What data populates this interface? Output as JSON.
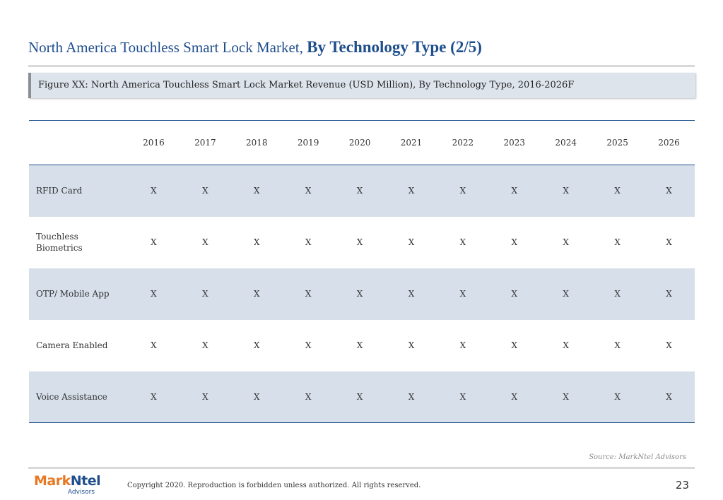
{
  "title": {
    "normal": "North America Touchless Smart Lock Market,",
    "bold": "By Technology Type (2/5)"
  },
  "figure_caption": "Figure XX: North America Touchless Smart Lock Market Revenue (USD Million), By Technology Type, 2016-2026F",
  "table": {
    "years": [
      "2016",
      "2017",
      "2018",
      "2019",
      "2020",
      "2021",
      "2022",
      "2023",
      "2024",
      "2025",
      "2026"
    ],
    "rows": [
      {
        "label_line1": "RFID Card",
        "label_line2": "",
        "values": [
          "X",
          "X",
          "X",
          "X",
          "X",
          "X",
          "X",
          "X",
          "X",
          "X",
          "X"
        ]
      },
      {
        "label_line1": "Touchless",
        "label_line2": "Biometrics",
        "values": [
          "X",
          "X",
          "X",
          "X",
          "X",
          "X",
          "X",
          "X",
          "X",
          "X",
          "X"
        ]
      },
      {
        "label_line1": "OTP/ Mobile App",
        "label_line2": "",
        "values": [
          "X",
          "X",
          "X",
          "X",
          "X",
          "X",
          "X",
          "X",
          "X",
          "X",
          "X"
        ]
      },
      {
        "label_line1": "Camera Enabled",
        "label_line2": "",
        "values": [
          "X",
          "X",
          "X",
          "X",
          "X",
          "X",
          "X",
          "X",
          "X",
          "X",
          "X"
        ]
      },
      {
        "label_line1": "Voice Assistance",
        "label_line2": "",
        "values": [
          "X",
          "X",
          "X",
          "X",
          "X",
          "X",
          "X",
          "X",
          "X",
          "X",
          "X"
        ]
      }
    ]
  },
  "source": "Source: MarkNtel Advisors",
  "logo": {
    "part1": "Mark",
    "part2": "Ntel",
    "sub": "Advisors"
  },
  "copyright": "Copyright 2020. Reproduction is forbidden unless authorized. All rights reserved.",
  "page_number": "23"
}
